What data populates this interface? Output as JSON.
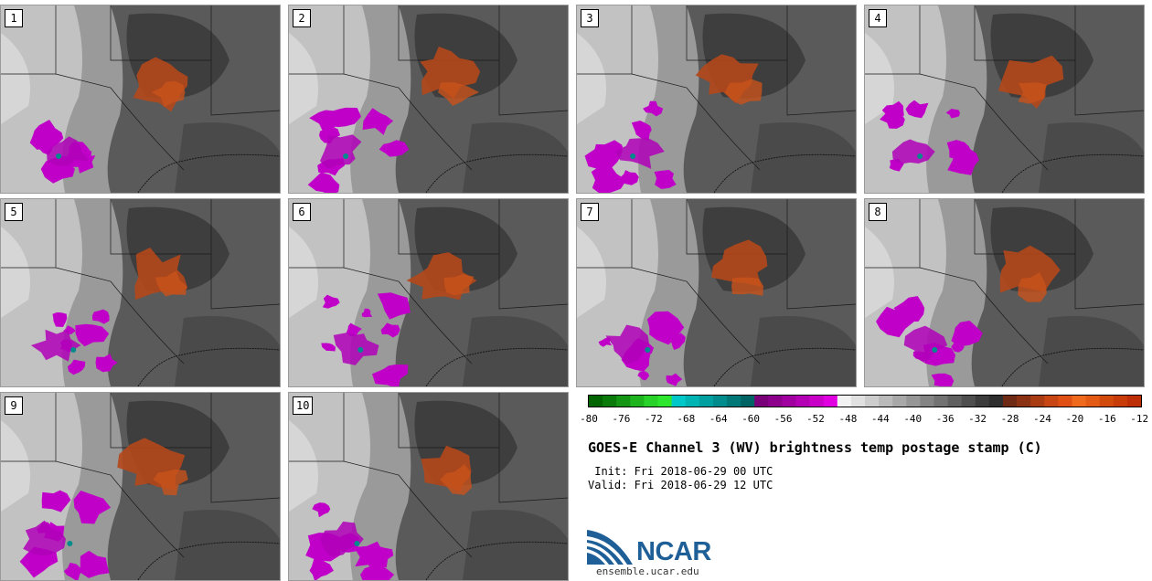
{
  "panels": [
    {
      "label": "1"
    },
    {
      "label": "2"
    },
    {
      "label": "3"
    },
    {
      "label": "4"
    },
    {
      "label": "5"
    },
    {
      "label": "6"
    },
    {
      "label": "7"
    },
    {
      "label": "8"
    },
    {
      "label": "9"
    },
    {
      "label": "10"
    }
  ],
  "colorbar": {
    "ticks": [
      "-80",
      "-76",
      "-72",
      "-68",
      "-64",
      "-60",
      "-56",
      "-52",
      "-48",
      "-44",
      "-40",
      "-36",
      "-32",
      "-28",
      "-24",
      "-20",
      "-16",
      "-12"
    ],
    "colors": [
      "#006400",
      "#0a7a0a",
      "#149614",
      "#1eb41e",
      "#28d228",
      "#2ee62e",
      "#00c8c8",
      "#00b4b4",
      "#00a0a0",
      "#008c8c",
      "#007878",
      "#006464",
      "#7a007a",
      "#8c008c",
      "#a000a0",
      "#b400b4",
      "#c800c8",
      "#e000e0",
      "#f2f2f2",
      "#e0e0e0",
      "#cdcdcd",
      "#bababa",
      "#a8a8a8",
      "#969696",
      "#848484",
      "#727272",
      "#606060",
      "#4e4e4e",
      "#3c3c3c",
      "#2e2e2e",
      "#6e2a14",
      "#8c3214",
      "#aa3c14",
      "#c84614",
      "#e05014",
      "#f06a1e",
      "#e25a14",
      "#d24a0c",
      "#c83c0a",
      "#be2e06"
    ]
  },
  "title": "GOES-E Channel 3 (WV) brightness temp postage stamp (C)",
  "init_line": " Init: Fri 2018-06-29 00 UTC",
  "valid_line": "Valid: Fri 2018-06-29 12 UTC",
  "logo": {
    "text": "NCAR",
    "site": "ensemble.ucar.edu",
    "color": "#1f5f97"
  }
}
